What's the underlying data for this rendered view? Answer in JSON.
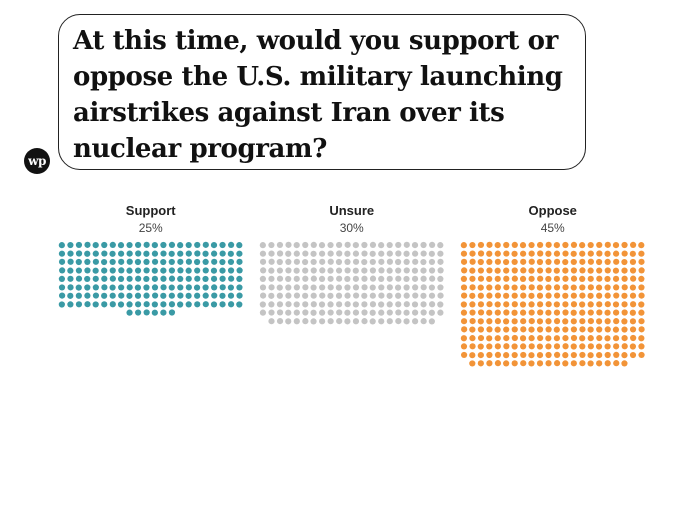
{
  "question": "At this time, would you support or oppose the U.S. military launching airstrikes against Iran over its nuclear program?",
  "logo_text": "wp",
  "chart_data": {
    "type": "waffle",
    "title": "At this time, would you support or oppose the U.S. military launching airstrikes against Iran over its nuclear program?",
    "categories": [
      "Support",
      "Unsure",
      "Oppose"
    ],
    "values": [
      25,
      30,
      45
    ],
    "labels": [
      "25%",
      "30%",
      "45%"
    ],
    "colors": [
      "#3a9aa5",
      "#c4c4c4",
      "#f29438"
    ],
    "dot_counts": [
      182,
      218,
      327
    ]
  }
}
